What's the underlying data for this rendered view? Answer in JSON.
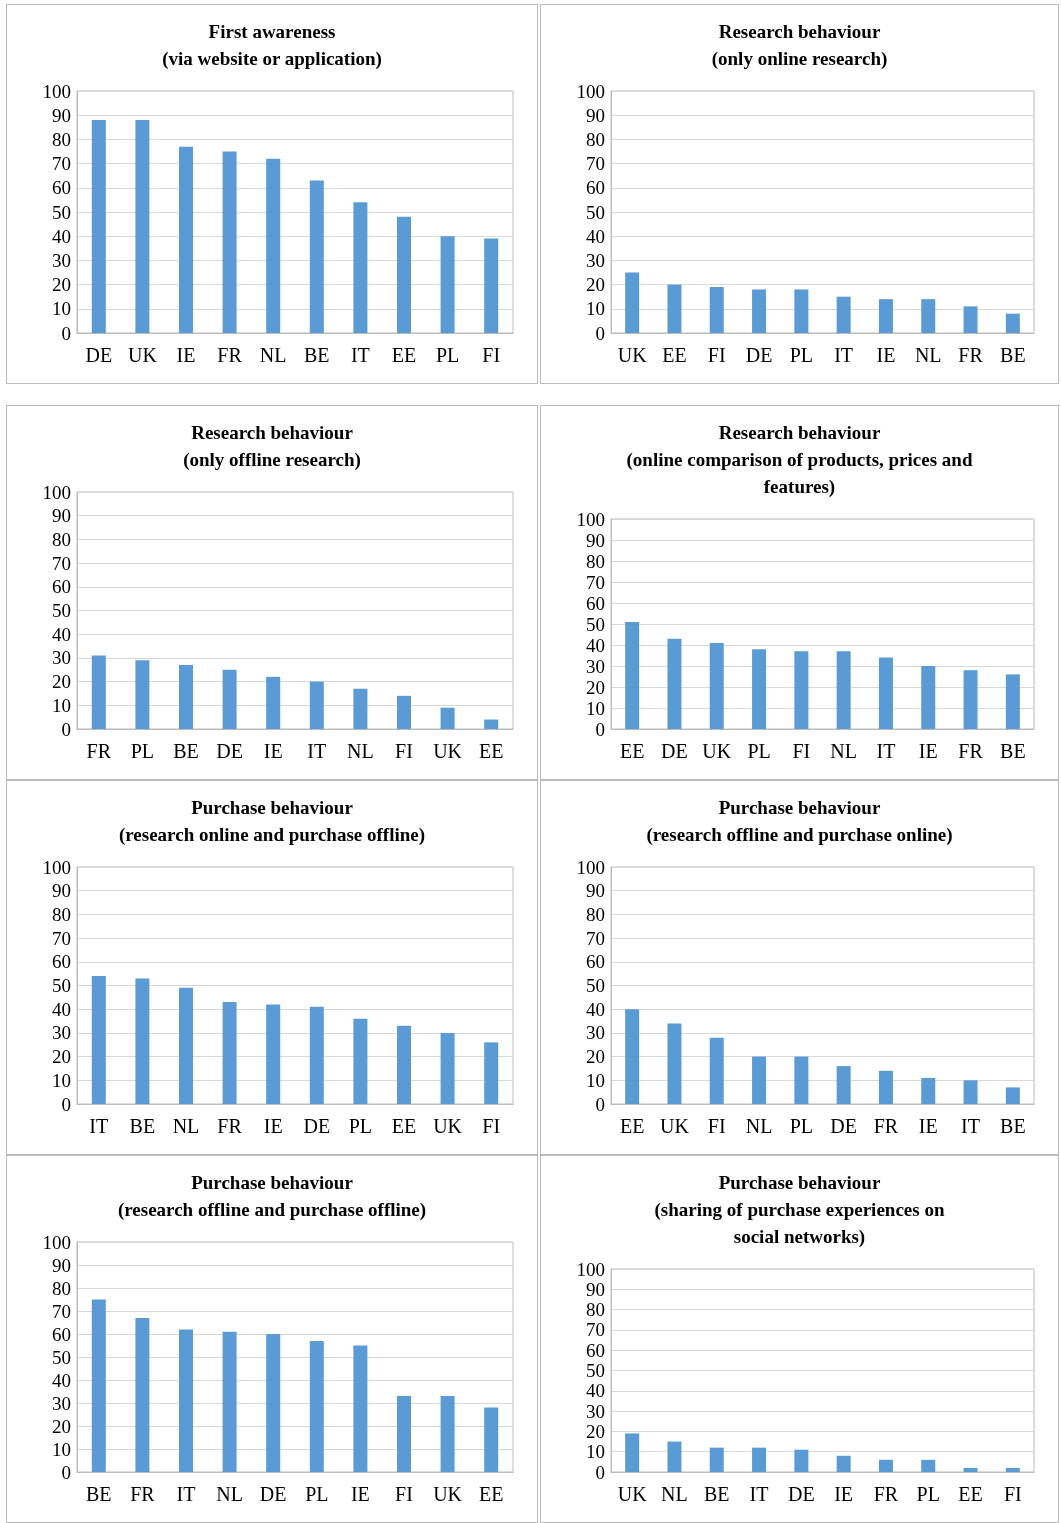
{
  "chart_data": [
    {
      "type": "bar",
      "title": "First awareness\n(via website or application)",
      "categories": [
        "DE",
        "UK",
        "IE",
        "FR",
        "NL",
        "BE",
        "IT",
        "EE",
        "PL",
        "FI"
      ],
      "values": [
        88,
        88,
        77,
        75,
        72,
        63,
        54,
        48,
        40,
        39
      ],
      "color": "#5b9bd5",
      "ylim": [
        0,
        100
      ],
      "yticks": [
        0,
        10,
        20,
        30,
        40,
        50,
        60,
        70,
        80,
        90,
        100
      ],
      "grid": "y"
    },
    {
      "type": "bar",
      "title": "Research behaviour\n(only online research)",
      "categories": [
        "UK",
        "EE",
        "FI",
        "DE",
        "PL",
        "IT",
        "IE",
        "NL",
        "FR",
        "BE"
      ],
      "values": [
        25,
        20,
        19,
        18,
        18,
        15,
        14,
        14,
        11,
        8
      ],
      "color": "#5b9bd5",
      "ylim": [
        0,
        100
      ],
      "yticks": [
        0,
        10,
        20,
        30,
        40,
        50,
        60,
        70,
        80,
        90,
        100
      ],
      "grid": "y"
    },
    {
      "type": "bar",
      "title": "Research behaviour\n(only offline research)",
      "categories": [
        "FR",
        "PL",
        "BE",
        "DE",
        "IE",
        "IT",
        "NL",
        "FI",
        "UK",
        "EE"
      ],
      "values": [
        31,
        29,
        27,
        25,
        22,
        20,
        17,
        14,
        9,
        4
      ],
      "color": "#5b9bd5",
      "ylim": [
        0,
        100
      ],
      "yticks": [
        0,
        10,
        20,
        30,
        40,
        50,
        60,
        70,
        80,
        90,
        100
      ],
      "grid": "y"
    },
    {
      "type": "bar",
      "title": "Research behaviour\n(online comparison of products, prices and\nfeatures)",
      "categories": [
        "EE",
        "DE",
        "UK",
        "PL",
        "FI",
        "NL",
        "IT",
        "IE",
        "FR",
        "BE"
      ],
      "values": [
        51,
        43,
        41,
        38,
        37,
        37,
        34,
        30,
        28,
        26
      ],
      "color": "#5b9bd5",
      "ylim": [
        0,
        100
      ],
      "yticks": [
        0,
        10,
        20,
        30,
        40,
        50,
        60,
        70,
        80,
        90,
        100
      ],
      "grid": "y"
    },
    {
      "type": "bar",
      "title": "Purchase behaviour\n(research online and purchase offline)",
      "categories": [
        "IT",
        "BE",
        "NL",
        "FR",
        "IE",
        "DE",
        "PL",
        "EE",
        "UK",
        "FI"
      ],
      "values": [
        54,
        53,
        49,
        43,
        42,
        41,
        36,
        33,
        30,
        26
      ],
      "color": "#5b9bd5",
      "ylim": [
        0,
        100
      ],
      "yticks": [
        0,
        10,
        20,
        30,
        40,
        50,
        60,
        70,
        80,
        90,
        100
      ],
      "grid": "y"
    },
    {
      "type": "bar",
      "title": "Purchase behaviour\n(research offline and purchase online)",
      "categories": [
        "EE",
        "UK",
        "FI",
        "NL",
        "PL",
        "DE",
        "FR",
        "IE",
        "IT",
        "BE"
      ],
      "values": [
        40,
        34,
        28,
        20,
        20,
        16,
        14,
        11,
        10,
        7
      ],
      "color": "#5b9bd5",
      "ylim": [
        0,
        100
      ],
      "yticks": [
        0,
        10,
        20,
        30,
        40,
        50,
        60,
        70,
        80,
        90,
        100
      ],
      "grid": "y"
    },
    {
      "type": "bar",
      "title": "Purchase behaviour\n(research offline and purchase offline)",
      "categories": [
        "BE",
        "FR",
        "IT",
        "NL",
        "DE",
        "PL",
        "IE",
        "FI",
        "UK",
        "EE"
      ],
      "values": [
        75,
        67,
        62,
        61,
        60,
        57,
        55,
        33,
        33,
        28
      ],
      "color": "#5b9bd5",
      "ylim": [
        0,
        100
      ],
      "yticks": [
        0,
        10,
        20,
        30,
        40,
        50,
        60,
        70,
        80,
        90,
        100
      ],
      "grid": "y"
    },
    {
      "type": "bar",
      "title": "Purchase behaviour\n(sharing of purchase experiences on\nsocial networks)",
      "categories": [
        "UK",
        "NL",
        "BE",
        "IT",
        "DE",
        "IE",
        "FR",
        "PL",
        "EE",
        "FI"
      ],
      "values": [
        19,
        15,
        12,
        12,
        11,
        8,
        6,
        6,
        2,
        2
      ],
      "color": "#5b9bd5",
      "ylim": [
        0,
        100
      ],
      "yticks": [
        0,
        10,
        20,
        30,
        40,
        50,
        60,
        70,
        80,
        90,
        100
      ],
      "grid": "y"
    }
  ]
}
